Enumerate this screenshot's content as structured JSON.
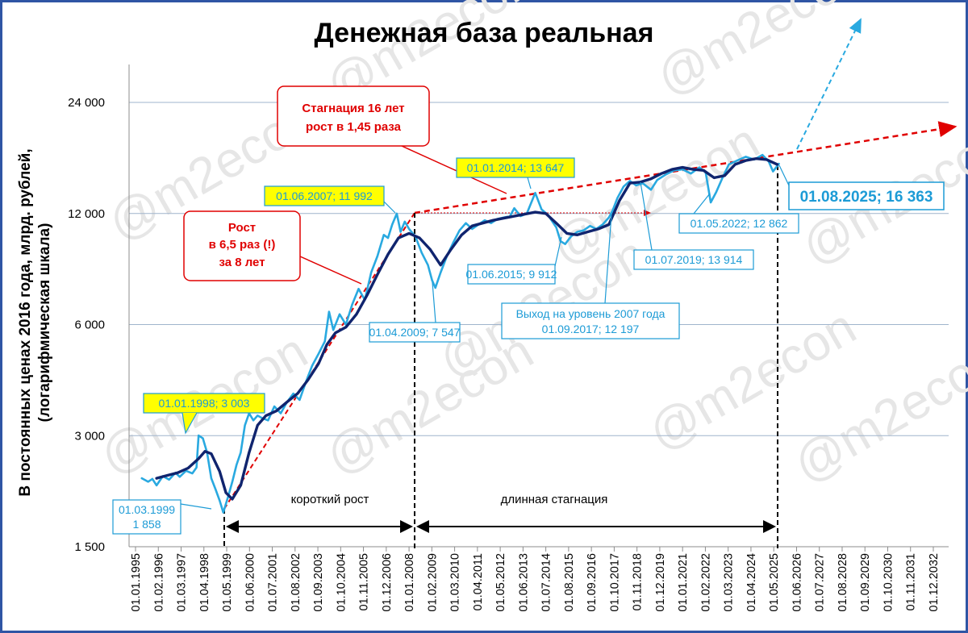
{
  "chart_data": {
    "type": "line",
    "title": "Денежная база реальная",
    "ylabel_line1": "В постоянных ценах 2016 года, млрд. рублей,",
    "ylabel_line2": "(логарифмическая шкала)",
    "y_scale": "log",
    "ylim": [
      1500,
      30000
    ],
    "y_ticks": [
      "1 500",
      "3 000",
      "6 000",
      "12 000",
      "24 000"
    ],
    "y_tick_values": [
      1500,
      3000,
      6000,
      12000,
      24000
    ],
    "x_ticks": [
      "01.01.1995",
      "01.02.1996",
      "01.03.1997",
      "01.04.1998",
      "01.05.1999",
      "01.06.2000",
      "01.07.2001",
      "01.08.2002",
      "01.09.2003",
      "01.10.2004",
      "01.11.2005",
      "01.12.2006",
      "01.01.2008",
      "01.02.2009",
      "01.03.2010",
      "01.04.2011",
      "01.05.2012",
      "01.06.2013",
      "01.07.2014",
      "01.08.2015",
      "01.09.2016",
      "01.10.2017",
      "01.11.2018",
      "01.12.2019",
      "01.01.2021",
      "01.02.2022",
      "01.03.2023",
      "01.04.2024",
      "01.05.2025",
      "01.06.2026",
      "01.07.2027",
      "01.08.2028",
      "01.09.2029",
      "01.10.2030",
      "01.11.2031",
      "01.12.2032"
    ],
    "grid": true,
    "watermark": "@m2econ",
    "series": [
      {
        "color": "#29a9e0",
        "points": [
          [
            1995.3,
            2300
          ],
          [
            1995.6,
            2250
          ],
          [
            1995.8,
            2290
          ],
          [
            1996.0,
            2200
          ],
          [
            1996.3,
            2330
          ],
          [
            1996.6,
            2280
          ],
          [
            1996.9,
            2380
          ],
          [
            1997.1,
            2320
          ],
          [
            1997.4,
            2410
          ],
          [
            1997.7,
            2370
          ],
          [
            1997.9,
            2460
          ],
          [
            1998.0,
            3003
          ],
          [
            1998.2,
            2950
          ],
          [
            1998.4,
            2700
          ],
          [
            1998.6,
            2300
          ],
          [
            1998.8,
            2150
          ],
          [
            1999.0,
            2000
          ],
          [
            1999.17,
            1858
          ],
          [
            1999.4,
            2050
          ],
          [
            1999.6,
            2250
          ],
          [
            1999.8,
            2500
          ],
          [
            2000.0,
            2700
          ],
          [
            2000.2,
            3200
          ],
          [
            2000.4,
            3450
          ],
          [
            2000.6,
            3300
          ],
          [
            2000.8,
            3400
          ],
          [
            2001.0,
            3350
          ],
          [
            2001.3,
            3300
          ],
          [
            2001.6,
            3600
          ],
          [
            2001.9,
            3450
          ],
          [
            2002.2,
            3700
          ],
          [
            2002.5,
            3900
          ],
          [
            2002.8,
            3750
          ],
          [
            2003.1,
            4200
          ],
          [
            2003.4,
            4650
          ],
          [
            2003.7,
            5000
          ],
          [
            2004.0,
            5400
          ],
          [
            2004.2,
            6500
          ],
          [
            2004.4,
            5800
          ],
          [
            2004.7,
            6400
          ],
          [
            2005.0,
            6000
          ],
          [
            2005.3,
            6800
          ],
          [
            2005.6,
            7500
          ],
          [
            2005.9,
            7000
          ],
          [
            2006.2,
            8300
          ],
          [
            2006.5,
            9200
          ],
          [
            2006.8,
            10500
          ],
          [
            2007.0,
            10300
          ],
          [
            2007.2,
            11200
          ],
          [
            2007.42,
            11992
          ],
          [
            2007.6,
            10700
          ],
          [
            2007.8,
            11400
          ],
          [
            2008.0,
            10900
          ],
          [
            2008.3,
            10400
          ],
          [
            2008.6,
            9400
          ],
          [
            2008.9,
            8700
          ],
          [
            2009.1,
            7900
          ],
          [
            2009.25,
            7547
          ],
          [
            2009.5,
            8300
          ],
          [
            2009.8,
            9200
          ],
          [
            2010.1,
            10000
          ],
          [
            2010.4,
            10800
          ],
          [
            2010.7,
            11300
          ],
          [
            2011.0,
            10900
          ],
          [
            2011.3,
            11200
          ],
          [
            2011.6,
            11500
          ],
          [
            2011.9,
            11300
          ],
          [
            2012.2,
            11600
          ],
          [
            2012.5,
            11700
          ],
          [
            2012.8,
            11800
          ],
          [
            2013.0,
            12400
          ],
          [
            2013.3,
            11800
          ],
          [
            2013.6,
            12000
          ],
          [
            2014.0,
            13647
          ],
          [
            2014.3,
            12300
          ],
          [
            2014.6,
            11900
          ],
          [
            2015.0,
            11000
          ],
          [
            2015.2,
            10100
          ],
          [
            2015.42,
            9912
          ],
          [
            2015.7,
            10400
          ],
          [
            2016.0,
            10700
          ],
          [
            2016.3,
            10800
          ],
          [
            2016.6,
            11100
          ],
          [
            2016.9,
            10900
          ],
          [
            2017.2,
            11200
          ],
          [
            2017.5,
            11700
          ],
          [
            2017.67,
            12197
          ],
          [
            2017.9,
            13200
          ],
          [
            2018.2,
            14200
          ],
          [
            2018.5,
            14700
          ],
          [
            2018.8,
            14300
          ],
          [
            2019.1,
            14500
          ],
          [
            2019.5,
            13914
          ],
          [
            2019.8,
            14800
          ],
          [
            2020.2,
            15300
          ],
          [
            2020.6,
            15700
          ],
          [
            2021.0,
            15800
          ],
          [
            2021.4,
            15400
          ],
          [
            2021.8,
            16000
          ],
          [
            2022.1,
            15500
          ],
          [
            2022.34,
            12862
          ],
          [
            2022.6,
            13700
          ],
          [
            2022.9,
            15000
          ],
          [
            2023.2,
            16300
          ],
          [
            2023.6,
            16700
          ],
          [
            2024.0,
            17100
          ],
          [
            2024.4,
            16800
          ],
          [
            2024.8,
            17300
          ],
          [
            2025.1,
            16600
          ],
          [
            2025.3,
            15600
          ],
          [
            2025.58,
            16363
          ]
        ]
      },
      {
        "color": "#10246e",
        "points": [
          [
            1996.0,
            2300
          ],
          [
            1996.5,
            2340
          ],
          [
            1997.0,
            2380
          ],
          [
            1997.5,
            2450
          ],
          [
            1998.0,
            2600
          ],
          [
            1998.3,
            2720
          ],
          [
            1998.6,
            2680
          ],
          [
            1999.0,
            2400
          ],
          [
            1999.3,
            2100
          ],
          [
            1999.6,
            2020
          ],
          [
            2000.0,
            2200
          ],
          [
            2000.4,
            2700
          ],
          [
            2000.8,
            3200
          ],
          [
            2001.2,
            3400
          ],
          [
            2001.7,
            3500
          ],
          [
            2002.2,
            3700
          ],
          [
            2002.7,
            3900
          ],
          [
            2003.2,
            4250
          ],
          [
            2003.7,
            4700
          ],
          [
            2004.1,
            5300
          ],
          [
            2004.5,
            5700
          ],
          [
            2005.0,
            5900
          ],
          [
            2005.5,
            6400
          ],
          [
            2006.0,
            7200
          ],
          [
            2006.5,
            8200
          ],
          [
            2007.0,
            9300
          ],
          [
            2007.5,
            10300
          ],
          [
            2008.0,
            10600
          ],
          [
            2008.5,
            10300
          ],
          [
            2009.0,
            9600
          ],
          [
            2009.5,
            8700
          ],
          [
            2010.0,
            9600
          ],
          [
            2010.5,
            10500
          ],
          [
            2011.0,
            11100
          ],
          [
            2011.5,
            11300
          ],
          [
            2012.0,
            11500
          ],
          [
            2012.5,
            11650
          ],
          [
            2013.0,
            11800
          ],
          [
            2013.5,
            11950
          ],
          [
            2014.0,
            12100
          ],
          [
            2014.5,
            12000
          ],
          [
            2015.0,
            11300
          ],
          [
            2015.5,
            10600
          ],
          [
            2016.0,
            10500
          ],
          [
            2016.5,
            10700
          ],
          [
            2017.0,
            10900
          ],
          [
            2017.5,
            11200
          ],
          [
            2018.0,
            13000
          ],
          [
            2018.5,
            14500
          ],
          [
            2019.0,
            14600
          ],
          [
            2019.5,
            14900
          ],
          [
            2020.0,
            15400
          ],
          [
            2020.5,
            15800
          ],
          [
            2021.0,
            16000
          ],
          [
            2021.5,
            15800
          ],
          [
            2022.0,
            15700
          ],
          [
            2022.5,
            15000
          ],
          [
            2023.0,
            15200
          ],
          [
            2023.5,
            16300
          ],
          [
            2024.0,
            16700
          ],
          [
            2024.5,
            16900
          ],
          [
            2025.0,
            16800
          ],
          [
            2025.5,
            16300
          ]
        ]
      }
    ],
    "callouts": {
      "c1998": "01.01.1998; 3 003",
      "c1999_line1": "01.03.1999",
      "c1999_line2": "1 858",
      "c2007": "01.06.2007; 11 992",
      "c2009": "01.04.2009; 7 547",
      "c2014": "01.01.2014; 13 647",
      "c2015": "01.06.2015; 9 912",
      "c2017_line1": "Выход на уровень 2007 года",
      "c2017_line2": "01.09.2017; 12 197",
      "c2019": "01.07.2019; 13 914",
      "c2022": "01.05.2022; 12 862",
      "c2025": "01.08.2025; 16 363",
      "growth_line1": "Рост",
      "growth_line2": "в 6,5 раз (!)",
      "growth_line3": "за 8 лет",
      "stag_line1": "Стагнация 16 лет",
      "stag_line2": "рост в 1,45 раза",
      "short_growth": "короткий рост",
      "long_stagnation": "длинная стагнация"
    }
  }
}
